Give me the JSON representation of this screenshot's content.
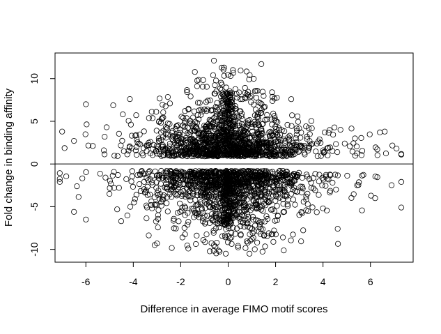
{
  "chart_data": {
    "type": "scatter",
    "title": "",
    "xlabel": "Difference in average FIMO motif scores",
    "ylabel": "Fold change in binding affinity",
    "xlim": [
      -7.3,
      7.8
    ],
    "ylim": [
      -11.5,
      13.0
    ],
    "xticks": [
      -6,
      -4,
      -2,
      0,
      2,
      4,
      6
    ],
    "yticks": [
      -10,
      -5,
      0,
      5,
      10
    ],
    "grid": false,
    "legend": "none",
    "reference_line_y": 0,
    "marker": "open-circle",
    "point_color": "#000000",
    "point_count": 2600,
    "clusters": [
      {
        "name": "",
        "y_sign": "positive",
        "x_center": 0,
        "x_spread": 1.6,
        "y_min": 0.9,
        "y_mode": 2.5,
        "y_max": 12.1
      },
      {
        "name": "",
        "y_sign": "negative",
        "x_center": 0,
        "x_spread": 1.6,
        "y_max": -0.8,
        "y_mode": -3.0,
        "y_min": -10.5
      }
    ],
    "notable_points": [
      {
        "x": -0.6,
        "y": 12.1
      },
      {
        "x": 1.4,
        "y": 11.7
      },
      {
        "x": 0.2,
        "y": 11.0
      },
      {
        "x": -6.0,
        "y": 7.0
      },
      {
        "x": -7.0,
        "y": 3.8
      },
      {
        "x": -6.5,
        "y": 2.7
      },
      {
        "x": 7.1,
        "y": 1.8
      },
      {
        "x": 6.6,
        "y": 3.8
      },
      {
        "x": 6.4,
        "y": 3.7
      },
      {
        "x": -7.1,
        "y": -2.1
      },
      {
        "x": -6.5,
        "y": -5.6
      },
      {
        "x": -6.0,
        "y": -6.5
      },
      {
        "x": 7.3,
        "y": -5.1
      },
      {
        "x": 6.2,
        "y": -4.0
      },
      {
        "x": -0.1,
        "y": -10.5
      },
      {
        "x": 0.9,
        "y": -10.5
      },
      {
        "x": -3.0,
        "y": -9.3
      },
      {
        "x": -3.1,
        "y": -9.5
      }
    ]
  }
}
